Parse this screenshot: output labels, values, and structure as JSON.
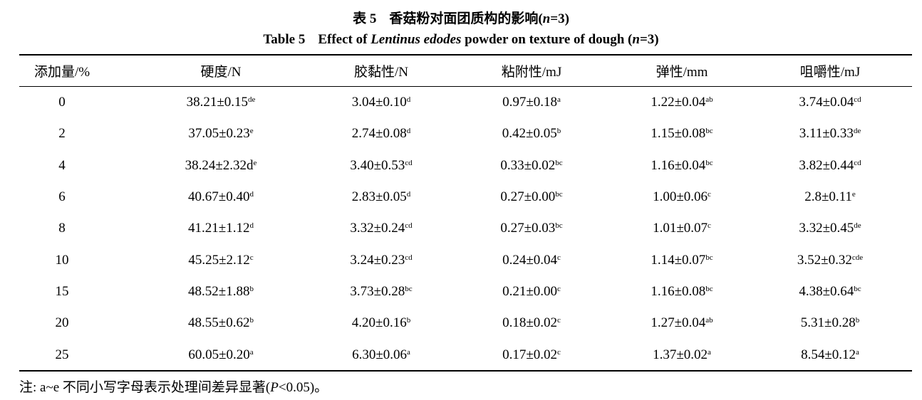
{
  "caption": {
    "zh_label": "表 5",
    "zh_title": "香菇粉对面团质构的影响(",
    "zh_n": "n",
    "zh_tail": "=3)",
    "en_label": "Table 5",
    "en_pre": "Effect of ",
    "en_species": "Lentinus edodes",
    "en_post": " powder on texture of dough (",
    "en_n": "n",
    "en_tail": "=3)"
  },
  "table": {
    "headers": [
      "添加量/%",
      "硬度/N",
      "胶黏性/N",
      "粘附性/mJ",
      "弹性/mm",
      "咀嚼性/mJ"
    ],
    "rows": [
      {
        "level": "0",
        "cells": [
          {
            "v": "38.21±0.15",
            "s": "de"
          },
          {
            "v": "3.04±0.10",
            "s": "d"
          },
          {
            "v": "0.97±0.18",
            "s": "a"
          },
          {
            "v": "1.22±0.04",
            "s": "ab"
          },
          {
            "v": "3.74±0.04",
            "s": "cd"
          }
        ]
      },
      {
        "level": "2",
        "cells": [
          {
            "v": "37.05±0.23",
            "s": "e"
          },
          {
            "v": "2.74±0.08",
            "s": "d"
          },
          {
            "v": "0.42±0.05",
            "s": "b"
          },
          {
            "v": "1.15±0.08",
            "s": "bc"
          },
          {
            "v": "3.11±0.33",
            "s": "de"
          }
        ]
      },
      {
        "level": "4",
        "cells": [
          {
            "v": "38.24±2.32d",
            "s": "e"
          },
          {
            "v": "3.40±0.53",
            "s": "cd"
          },
          {
            "v": "0.33±0.02",
            "s": "bc"
          },
          {
            "v": "1.16±0.04",
            "s": "bc"
          },
          {
            "v": "3.82±0.44",
            "s": "cd"
          }
        ]
      },
      {
        "level": "6",
        "cells": [
          {
            "v": "40.67±0.40",
            "s": "d"
          },
          {
            "v": "2.83±0.05",
            "s": "d"
          },
          {
            "v": "0.27±0.00",
            "s": "bc"
          },
          {
            "v": "1.00±0.06",
            "s": "c"
          },
          {
            "v": "2.8±0.11",
            "s": "e"
          }
        ]
      },
      {
        "level": "8",
        "cells": [
          {
            "v": "41.21±1.12",
            "s": "d"
          },
          {
            "v": "3.32±0.24",
            "s": "cd"
          },
          {
            "v": "0.27±0.03",
            "s": "bc"
          },
          {
            "v": "1.01±0.07",
            "s": "c"
          },
          {
            "v": "3.32±0.45",
            "s": "de"
          }
        ]
      },
      {
        "level": "10",
        "cells": [
          {
            "v": "45.25±2.12",
            "s": "c"
          },
          {
            "v": "3.24±0.23",
            "s": "cd"
          },
          {
            "v": "0.24±0.04",
            "s": "c"
          },
          {
            "v": "1.14±0.07",
            "s": "bc"
          },
          {
            "v": "3.52±0.32",
            "s": "cde"
          }
        ]
      },
      {
        "level": "15",
        "cells": [
          {
            "v": "48.52±1.88",
            "s": "b"
          },
          {
            "v": "3.73±0.28",
            "s": "bc"
          },
          {
            "v": "0.21±0.00",
            "s": "c"
          },
          {
            "v": "1.16±0.08",
            "s": "bc"
          },
          {
            "v": "4.38±0.64",
            "s": "bc"
          }
        ]
      },
      {
        "level": "20",
        "cells": [
          {
            "v": "48.55±0.62",
            "s": "b"
          },
          {
            "v": "4.20±0.16",
            "s": "b"
          },
          {
            "v": "0.18±0.02",
            "s": "c"
          },
          {
            "v": "1.27±0.04",
            "s": "ab"
          },
          {
            "v": "5.31±0.28",
            "s": "b"
          }
        ]
      },
      {
        "level": "25",
        "cells": [
          {
            "v": "60.05±0.20",
            "s": "a"
          },
          {
            "v": "6.30±0.06",
            "s": "a"
          },
          {
            "v": "0.17±0.02",
            "s": "c"
          },
          {
            "v": "1.37±0.02",
            "s": "a"
          },
          {
            "v": "8.54±0.12",
            "s": "a"
          }
        ]
      }
    ]
  },
  "note": {
    "pre": "注: a~e 不同小写字母表示处理间差异显著(",
    "p": "P",
    "post": "<0.05)。"
  }
}
